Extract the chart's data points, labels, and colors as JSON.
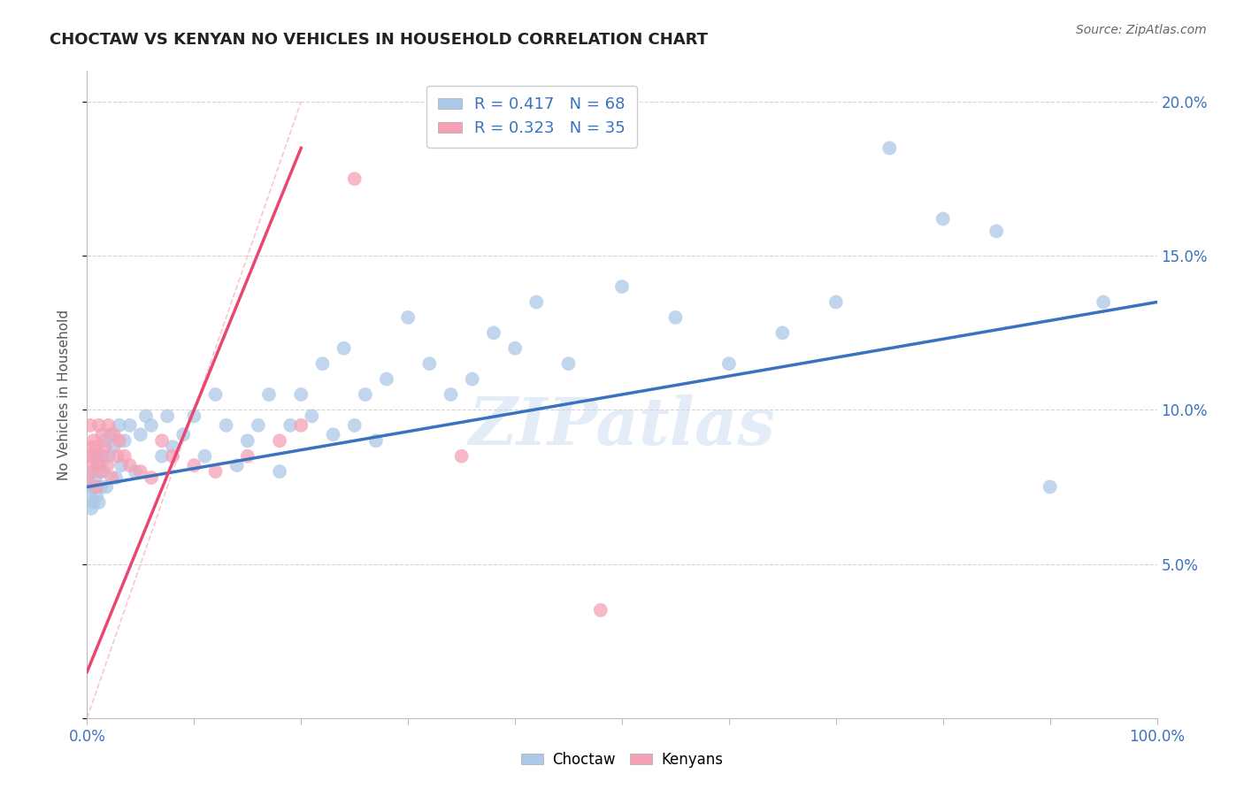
{
  "title": "CHOCTAW VS KENYAN NO VEHICLES IN HOUSEHOLD CORRELATION CHART",
  "source": "Source: ZipAtlas.com",
  "ylabel": "No Vehicles in Household",
  "xlim": [
    0,
    100
  ],
  "ylim": [
    0,
    21
  ],
  "choctaw_R": 0.417,
  "choctaw_N": 68,
  "kenyan_R": 0.323,
  "kenyan_N": 35,
  "choctaw_color": "#adc8e8",
  "choctaw_line_color": "#3a72c0",
  "kenyan_color": "#f5a0b5",
  "kenyan_line_color": "#e84870",
  "legend_label_1": "Choctaw",
  "legend_label_2": "Kenyans",
  "watermark": "ZIPatlas",
  "background_color": "#ffffff",
  "grid_color": "#cccccc",
  "title_color": "#222222",
  "axis_label_color": "#3a72c0",
  "choctaw_x": [
    0.2,
    0.3,
    0.4,
    0.5,
    0.6,
    0.7,
    0.8,
    0.9,
    1.0,
    1.1,
    1.2,
    1.3,
    1.5,
    1.6,
    1.8,
    2.0,
    2.2,
    2.5,
    2.7,
    3.0,
    3.2,
    3.5,
    4.0,
    4.5,
    5.0,
    5.5,
    6.0,
    7.0,
    7.5,
    8.0,
    9.0,
    10.0,
    11.0,
    12.0,
    13.0,
    14.0,
    15.0,
    16.0,
    17.0,
    18.0,
    19.0,
    20.0,
    21.0,
    22.0,
    23.0,
    24.0,
    25.0,
    26.0,
    27.0,
    28.0,
    30.0,
    32.0,
    34.0,
    36.0,
    38.0,
    40.0,
    42.0,
    45.0,
    50.0,
    55.0,
    60.0,
    65.0,
    70.0,
    75.0,
    80.0,
    85.0,
    90.0,
    95.0
  ],
  "choctaw_y": [
    7.5,
    7.2,
    6.8,
    8.0,
    7.0,
    7.5,
    7.8,
    7.2,
    8.5,
    7.0,
    8.2,
    7.5,
    8.0,
    9.0,
    7.5,
    8.5,
    9.2,
    8.8,
    7.8,
    9.5,
    8.2,
    9.0,
    9.5,
    8.0,
    9.2,
    9.8,
    9.5,
    8.5,
    9.8,
    8.8,
    9.2,
    9.8,
    8.5,
    10.5,
    9.5,
    8.2,
    9.0,
    9.5,
    10.5,
    8.0,
    9.5,
    10.5,
    9.8,
    11.5,
    9.2,
    12.0,
    9.5,
    10.5,
    9.0,
    11.0,
    13.0,
    11.5,
    10.5,
    11.0,
    12.5,
    12.0,
    13.5,
    11.5,
    14.0,
    13.0,
    11.5,
    12.5,
    13.5,
    18.5,
    16.2,
    15.8,
    7.5,
    13.5
  ],
  "kenyan_x": [
    0.1,
    0.2,
    0.3,
    0.4,
    0.5,
    0.6,
    0.7,
    0.8,
    0.9,
    1.0,
    1.1,
    1.2,
    1.4,
    1.5,
    1.7,
    1.9,
    2.0,
    2.3,
    2.5,
    2.8,
    3.0,
    3.5,
    4.0,
    5.0,
    6.0,
    7.0,
    8.0,
    10.0,
    12.0,
    15.0,
    18.0,
    20.0,
    25.0,
    35.0,
    48.0
  ],
  "kenyan_y": [
    7.8,
    8.5,
    9.5,
    8.2,
    8.8,
    9.0,
    8.5,
    8.8,
    7.5,
    8.2,
    9.5,
    8.0,
    9.2,
    8.5,
    8.8,
    8.2,
    9.5,
    7.8,
    9.2,
    8.5,
    9.0,
    8.5,
    8.2,
    8.0,
    7.8,
    9.0,
    8.5,
    8.2,
    8.0,
    8.5,
    9.0,
    9.5,
    17.5,
    8.5,
    3.5
  ],
  "kenyan_line_x0": 0,
  "kenyan_line_x1": 20,
  "kenyan_line_y0": 1.5,
  "kenyan_line_y1": 18.5,
  "choctaw_line_x0": 0,
  "choctaw_line_x1": 100,
  "choctaw_line_y0": 7.5,
  "choctaw_line_y1": 13.5,
  "diag_x0": 0,
  "diag_x1": 20,
  "diag_y0": 0,
  "diag_y1": 20
}
